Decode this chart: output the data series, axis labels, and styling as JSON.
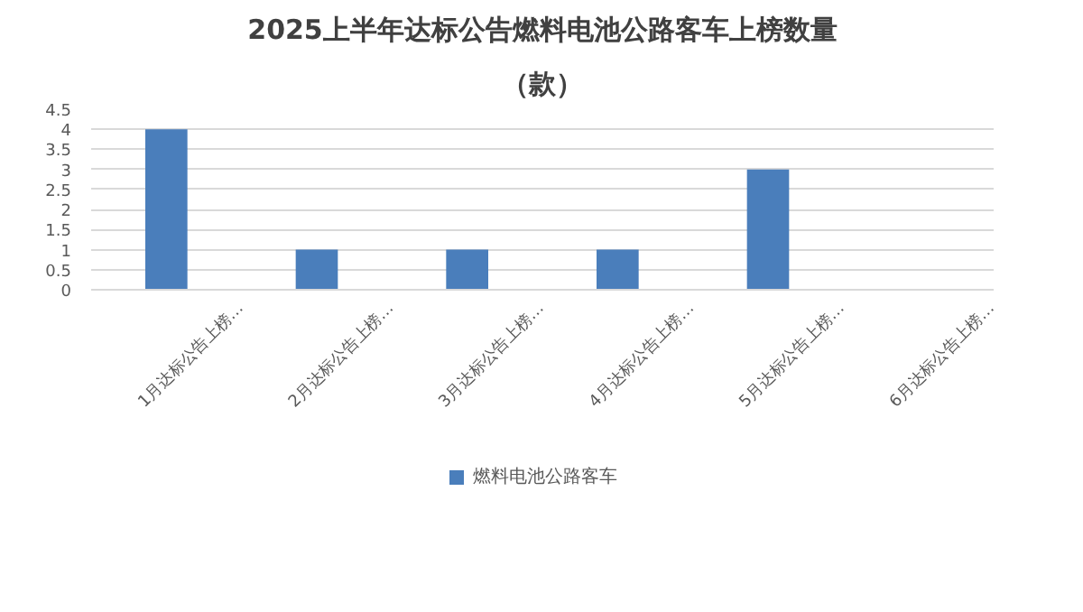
{
  "chart_data": {
    "type": "bar",
    "title": "2025上半年达标公告燃料电池公路客车上榜数量",
    "subtitle": "（款）",
    "categories": [
      "1月达标公告上榜…",
      "2月达标公告上榜…",
      "3月达标公告上榜…",
      "4月达标公告上榜…",
      "5月达标公告上榜…",
      "6月达标公告上榜…"
    ],
    "series": [
      {
        "name": "燃料电池公路客车",
        "color": "#4a7ebb",
        "values": [
          4,
          1,
          1,
          1,
          3,
          0
        ]
      }
    ],
    "ylim": [
      0,
      4.5
    ],
    "yticks": [
      0,
      0.5,
      1,
      1.5,
      2,
      2.5,
      3,
      3.5,
      4,
      4.5
    ],
    "grid": "y",
    "legend": "bottom"
  }
}
